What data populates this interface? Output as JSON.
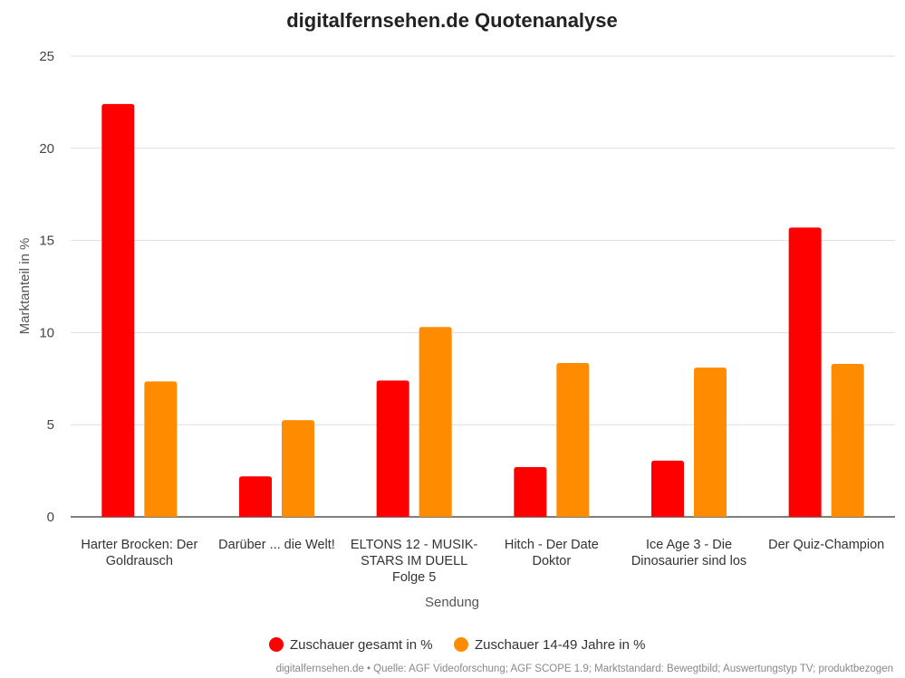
{
  "chart_data": {
    "type": "bar",
    "title": "digitalfernsehen.de Quotenanalyse",
    "xlabel": "Sendung",
    "ylabel": "Marktanteil in %",
    "ylim": [
      0,
      25
    ],
    "yticks": [
      "0",
      "5",
      "10",
      "15",
      "20",
      "25"
    ],
    "grid": true,
    "legend_position": "bottom",
    "categories": [
      [
        "Harter Brocken: Der",
        "Goldrausch"
      ],
      [
        "Darüber ... die Welt!"
      ],
      [
        "ELTONS 12 - MUSIK-",
        "STARS IM DUELL",
        "Folge 5"
      ],
      [
        "Hitch - Der Date",
        "Doktor"
      ],
      [
        "Ice Age 3 - Die",
        "Dinosaurier sind los"
      ],
      [
        "Der Quiz-Champion"
      ]
    ],
    "series": [
      {
        "name": "Zuschauer gesamt in %",
        "color": "#ff0000",
        "values": [
          22.4,
          2.2,
          7.4,
          2.7,
          3.05,
          15.7
        ]
      },
      {
        "name": "Zuschauer 14-49 Jahre in %",
        "color": "#ff8c00",
        "values": [
          7.35,
          5.25,
          10.3,
          8.35,
          8.1,
          8.3
        ]
      }
    ]
  },
  "source": "digitalfernsehen.de • Quelle: AGF Videoforschung; AGF SCOPE 1.9; Marktstandard: Bewegtbild; Auswertungstyp TV; produktbezogen"
}
